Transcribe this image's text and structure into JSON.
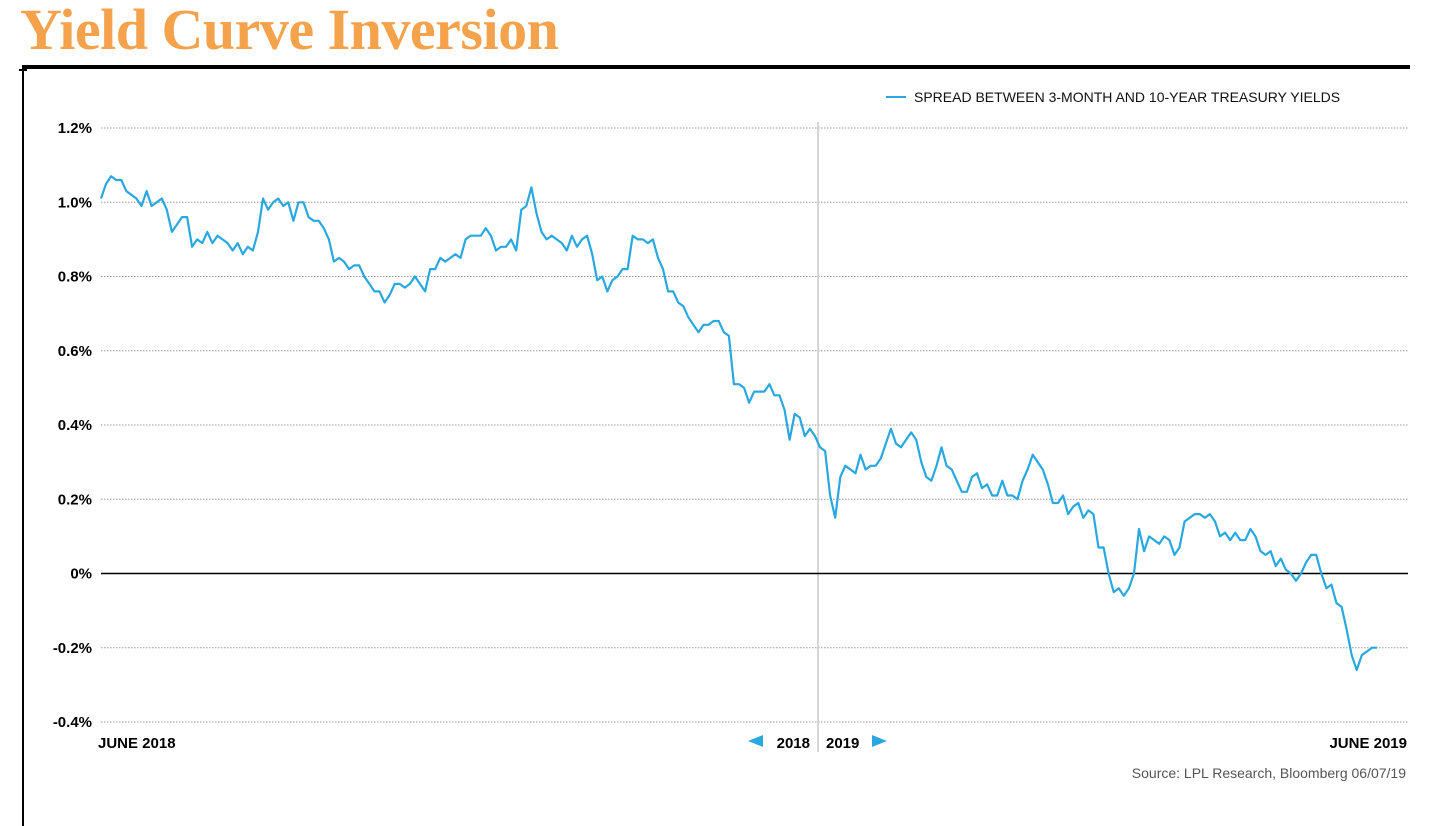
{
  "title": "Yield Curve Inversion",
  "source": "Source: LPL Research, Bloomberg 06/07/19",
  "colors": {
    "title": "#f4a24c",
    "series": "#29a8e0",
    "grid": "#9a9a9a",
    "divider": "#c8c8c8"
  },
  "chart_data": {
    "type": "line",
    "title": "Yield Curve Inversion",
    "xlabel": "",
    "ylabel": "",
    "ylim": [
      -0.4,
      1.2
    ],
    "yticks": [
      1.2,
      1.0,
      0.8,
      0.6,
      0.4,
      0.2,
      0,
      -0.2,
      -0.4
    ],
    "ytick_labels": [
      "1.2%",
      "1.0%",
      "0.8%",
      "0.6%",
      "0.4%",
      "0.2%",
      "0%",
      "-0.2%",
      "-0.4%"
    ],
    "x_range": [
      "2018-06-01",
      "2019-06-07"
    ],
    "x_labels": {
      "start": "JUNE 2018",
      "year_left": "2018",
      "year_right": "2019",
      "end": "JUNE 2019"
    },
    "grid": true,
    "legend_position": "top-right",
    "series": [
      {
        "name": "SPREAD BETWEEN 3-MONTH AND 10-YEAR TREASURY YIELDS",
        "color": "#29a8e0",
        "values": [
          1.01,
          1.05,
          1.07,
          1.06,
          1.06,
          1.03,
          1.02,
          1.01,
          0.99,
          1.03,
          0.99,
          1.0,
          1.01,
          0.98,
          0.92,
          0.94,
          0.96,
          0.96,
          0.88,
          0.9,
          0.89,
          0.92,
          0.89,
          0.91,
          0.9,
          0.89,
          0.87,
          0.89,
          0.86,
          0.88,
          0.87,
          0.92,
          1.01,
          0.98,
          1.0,
          1.01,
          0.99,
          1.0,
          0.95,
          1.0,
          1.0,
          0.96,
          0.95,
          0.95,
          0.93,
          0.9,
          0.84,
          0.85,
          0.84,
          0.82,
          0.83,
          0.83,
          0.8,
          0.78,
          0.76,
          0.76,
          0.73,
          0.75,
          0.78,
          0.78,
          0.77,
          0.78,
          0.8,
          0.78,
          0.76,
          0.82,
          0.82,
          0.85,
          0.84,
          0.85,
          0.86,
          0.85,
          0.9,
          0.91,
          0.91,
          0.91,
          0.93,
          0.91,
          0.87,
          0.88,
          0.88,
          0.9,
          0.87,
          0.98,
          0.99,
          1.04,
          0.97,
          0.92,
          0.9,
          0.91,
          0.9,
          0.89,
          0.87,
          0.91,
          0.88,
          0.9,
          0.91,
          0.86,
          0.79,
          0.8,
          0.76,
          0.79,
          0.8,
          0.82,
          0.82,
          0.91,
          0.9,
          0.9,
          0.89,
          0.9,
          0.85,
          0.82,
          0.76,
          0.76,
          0.73,
          0.72,
          0.69,
          0.67,
          0.65,
          0.67,
          0.67,
          0.68,
          0.68,
          0.65,
          0.64,
          0.51,
          0.51,
          0.5,
          0.46,
          0.49,
          0.49,
          0.49,
          0.51,
          0.48,
          0.48,
          0.44,
          0.36,
          0.43,
          0.42,
          0.37,
          0.39,
          0.37,
          0.34,
          0.33,
          0.21,
          0.15,
          0.26,
          0.29,
          0.28,
          0.27,
          0.32,
          0.28,
          0.29,
          0.29,
          0.31,
          0.35,
          0.39,
          0.35,
          0.34,
          0.36,
          0.38,
          0.36,
          0.3,
          0.26,
          0.25,
          0.29,
          0.34,
          0.29,
          0.28,
          0.25,
          0.22,
          0.22,
          0.26,
          0.27,
          0.23,
          0.24,
          0.21,
          0.21,
          0.25,
          0.21,
          0.21,
          0.2,
          0.25,
          0.28,
          0.32,
          0.3,
          0.28,
          0.24,
          0.19,
          0.19,
          0.21,
          0.16,
          0.18,
          0.19,
          0.15,
          0.17,
          0.16,
          0.07,
          0.07,
          0.0,
          -0.05,
          -0.04,
          -0.06,
          -0.04,
          0.0,
          0.12,
          0.06,
          0.1,
          0.09,
          0.08,
          0.1,
          0.09,
          0.05,
          0.07,
          0.14,
          0.15,
          0.16,
          0.16,
          0.15,
          0.16,
          0.14,
          0.1,
          0.11,
          0.09,
          0.11,
          0.09,
          0.09,
          0.12,
          0.1,
          0.06,
          0.05,
          0.06,
          0.02,
          0.04,
          0.01,
          0.0,
          -0.02,
          0.0,
          0.03,
          0.05,
          0.05,
          0.0,
          -0.04,
          -0.03,
          -0.08,
          -0.09,
          -0.15,
          -0.22,
          -0.26,
          -0.22,
          -0.21,
          -0.2,
          -0.2
        ]
      }
    ]
  }
}
